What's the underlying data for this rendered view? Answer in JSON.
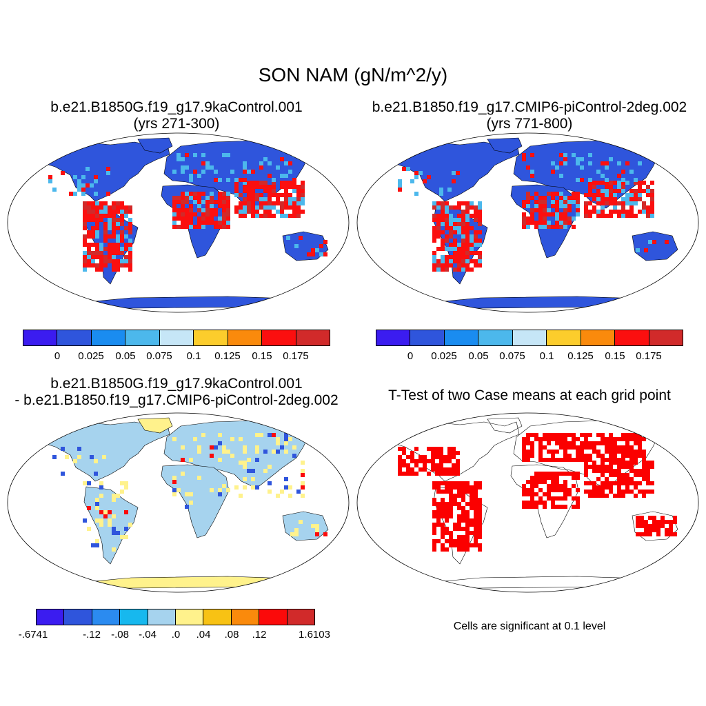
{
  "title": "SON NAM (gN/m^2/y)",
  "panels": {
    "top_left": {
      "title_line1": "b.e21.B1850G.f19_g17.9kaControl.001",
      "title_line2": "(yrs 271-300)"
    },
    "top_right": {
      "title_line1": "b.e21.B1850.f19_g17.CMIP6-piControl-2deg.002",
      "title_line2": "(yrs 771-800)"
    },
    "bottom_left": {
      "title_line1": "b.e21.B1850G.f19_g17.9kaControl.001",
      "title_line2": "- b.e21.B1850.f19_g17.CMIP6-piControl-2deg.002"
    },
    "bottom_right": {
      "title": "T-Test of two Case means at each grid point",
      "note": "Cells are significant at 0.1 level"
    }
  },
  "colorbars": {
    "case": {
      "colors": [
        "#3b1cf0",
        "#2f55dc",
        "#1a8cf0",
        "#4cb8ec",
        "#c6e6f7",
        "#fccd2c",
        "#fa8a0c",
        "#fb0f0f",
        "#d12a2a"
      ],
      "labels": [
        "0",
        "0.025",
        "0.05",
        "0.075",
        "0.1",
        "0.125",
        "0.15",
        "0.175"
      ]
    },
    "diff": {
      "colors": [
        "#3b1cf0",
        "#2f55dc",
        "#2b8bf0",
        "#17b8ee",
        "#a6d3ee",
        "#fff28c",
        "#f8c214",
        "#fa8a0c",
        "#fb0a0a",
        "#d12a2a"
      ],
      "labels": [
        "-.6741",
        "-.12",
        "-.08",
        "-.04",
        ".0",
        ".04",
        ".08",
        ".12",
        "1.6103"
      ]
    }
  },
  "map_colors": {
    "case_base": "#2f55dc",
    "case_hot": "#fb0f0f",
    "case_warm": "#d12a2a",
    "case_mid": "#4cb8ec",
    "diff_base": "#a6d3ee",
    "diff_pale": "#fff28c",
    "ttest_sig": "#fb0000"
  }
}
